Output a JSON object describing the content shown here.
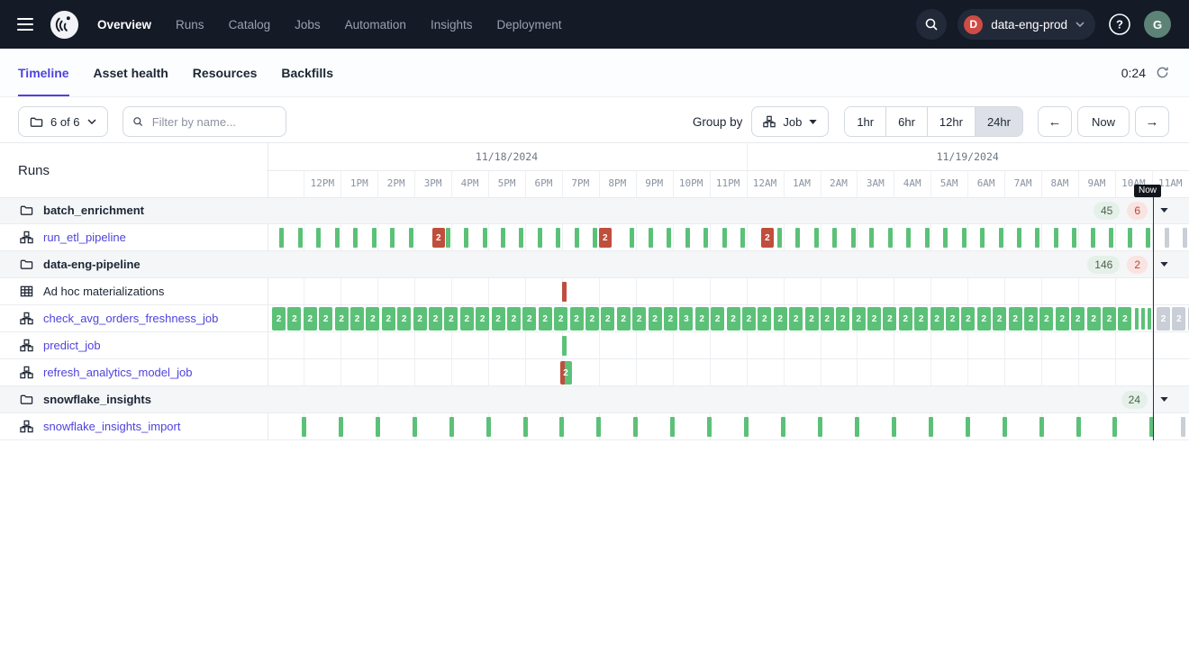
{
  "nav": {
    "items": [
      {
        "label": "Overview",
        "active": true
      },
      {
        "label": "Runs",
        "active": false
      },
      {
        "label": "Catalog",
        "active": false
      },
      {
        "label": "Jobs",
        "active": false
      },
      {
        "label": "Automation",
        "active": false
      },
      {
        "label": "Insights",
        "active": false
      },
      {
        "label": "Deployment",
        "active": false
      }
    ],
    "workspace": {
      "initial": "D",
      "name": "data-eng-prod"
    },
    "avatar_initial": "G"
  },
  "tabs": {
    "items": [
      {
        "label": "Timeline",
        "active": true
      },
      {
        "label": "Asset health",
        "active": false
      },
      {
        "label": "Resources",
        "active": false
      },
      {
        "label": "Backfills",
        "active": false
      }
    ],
    "refresh_timer": "0:24"
  },
  "toolbar": {
    "scope": "6 of 6",
    "filter_placeholder": "Filter by name...",
    "group_by_label": "Group by",
    "group_by_value": "Job",
    "ranges": [
      "1hr",
      "6hr",
      "12hr",
      "24hr"
    ],
    "active_range": "24hr",
    "prev_label": "←",
    "now_button_label": "Now",
    "next_label": "→"
  },
  "icons": {
    "menu-icon": "hamburger",
    "logo": "dagster-octopus",
    "search-icon": "magnifier",
    "help-icon": "question-circle",
    "chevron-down-icon": "chevron",
    "refresh-icon": "circular-arrows",
    "folder-icon": "folder",
    "job-icon": "org-chart",
    "adhoc-icon": "table-grid",
    "caret-down-icon": "solid-triangle"
  },
  "colors": {
    "accent": "#4f43dd",
    "nav_bg": "#141a26",
    "success_bar": "#5cc178",
    "failure_bar": "#c04e3d",
    "scheduled_bar": "#c9ced7",
    "badge_success_bg": "#e4f1e8",
    "badge_success_text": "#51604f",
    "badge_failure_bg": "#f9e4e1",
    "badge_failure_text": "#b5473c",
    "workspace_badge": "#cf4b45",
    "avatar_bg": "#5d8377"
  },
  "timeline": {
    "title": "Runs",
    "dates": [
      {
        "label": "11/18/2024",
        "from_col": 0,
        "to_col": 13
      },
      {
        "label": "11/19/2024",
        "from_col": 13,
        "to_col": 25
      }
    ],
    "hours": [
      "12PM",
      "1PM",
      "2PM",
      "3PM",
      "4PM",
      "5PM",
      "6PM",
      "7PM",
      "8PM",
      "9PM",
      "10PM",
      "11PM",
      "12AM",
      "1AM",
      "2AM",
      "3AM",
      "4AM",
      "5AM",
      "6AM",
      "7AM",
      "8AM",
      "9AM",
      "10AM",
      "11AM"
    ],
    "now_label": "Now",
    "now_t": 24.03,
    "rows": [
      {
        "type": "group",
        "label": "batch_enrichment",
        "badges": [
          {
            "text": "45",
            "tone": "success"
          },
          {
            "text": "6",
            "tone": "failure"
          }
        ],
        "bars": []
      },
      {
        "type": "job",
        "label": "run_etl_pipeline",
        "bars": [
          {
            "kind": "repeat",
            "t0": 0.4,
            "dt": 0.5,
            "n": 48,
            "status": "success",
            "style": "tick",
            "skip": [
              8,
              18,
              26
            ]
          },
          {
            "kind": "one",
            "t": 4.65,
            "status": "failure",
            "style": "box",
            "label": "2"
          },
          {
            "kind": "one",
            "t": 9.17,
            "status": "failure",
            "style": "box",
            "label": "2"
          },
          {
            "kind": "one",
            "t": 13.57,
            "status": "failure",
            "style": "box",
            "label": "2"
          },
          {
            "kind": "repeat",
            "t0": 24.4,
            "dt": 0.5,
            "n": 2,
            "status": "scheduled",
            "style": "tick"
          }
        ]
      },
      {
        "type": "group",
        "label": "data-eng-pipeline",
        "badges": [
          {
            "text": "146",
            "tone": "success"
          },
          {
            "text": "2",
            "tone": "failure"
          }
        ],
        "bars": []
      },
      {
        "type": "adhoc",
        "label": "Ad hoc materializations",
        "bars": [
          {
            "kind": "one",
            "t": 8.05,
            "status": "failure",
            "style": "tick"
          }
        ]
      },
      {
        "type": "job",
        "label": "check_avg_orders_freshness_job",
        "bars": [
          {
            "kind": "repeat",
            "t0": 0.318,
            "dt": 0.425,
            "n": 26,
            "status": "success",
            "style": "box",
            "label": "2"
          },
          {
            "kind": "one",
            "t": 11.37,
            "status": "success",
            "style": "box",
            "label": "3"
          },
          {
            "kind": "repeat",
            "t0": 11.793,
            "dt": 0.425,
            "n": 28,
            "status": "success",
            "style": "box",
            "label": "2"
          },
          {
            "kind": "repeat",
            "t0": 23.6,
            "dt": 0.16,
            "n": 3,
            "status": "success",
            "style": "thin"
          },
          {
            "kind": "repeat",
            "t0": 24.31,
            "dt": 0.425,
            "n": 3,
            "status": "scheduled",
            "style": "box",
            "label": "2"
          }
        ]
      },
      {
        "type": "job",
        "label": "predict_job",
        "bars": [
          {
            "kind": "one",
            "t": 8.05,
            "status": "success",
            "style": "tick"
          }
        ]
      },
      {
        "type": "job",
        "label": "refresh_analytics_model_job",
        "bars": [
          {
            "kind": "one",
            "t": 8.1,
            "status": "mixed",
            "style": "split",
            "label": "2"
          }
        ]
      },
      {
        "type": "group",
        "label": "snowflake_insights",
        "badges": [
          {
            "text": "24",
            "tone": "success"
          }
        ],
        "bars": []
      },
      {
        "type": "job",
        "label": "snowflake_insights_import",
        "bars": [
          {
            "kind": "repeat",
            "t0": 1,
            "dt": 1,
            "n": 24,
            "status": "success",
            "style": "tick"
          },
          {
            "kind": "one",
            "t": 24.85,
            "status": "scheduled",
            "style": "tick"
          }
        ]
      }
    ]
  }
}
